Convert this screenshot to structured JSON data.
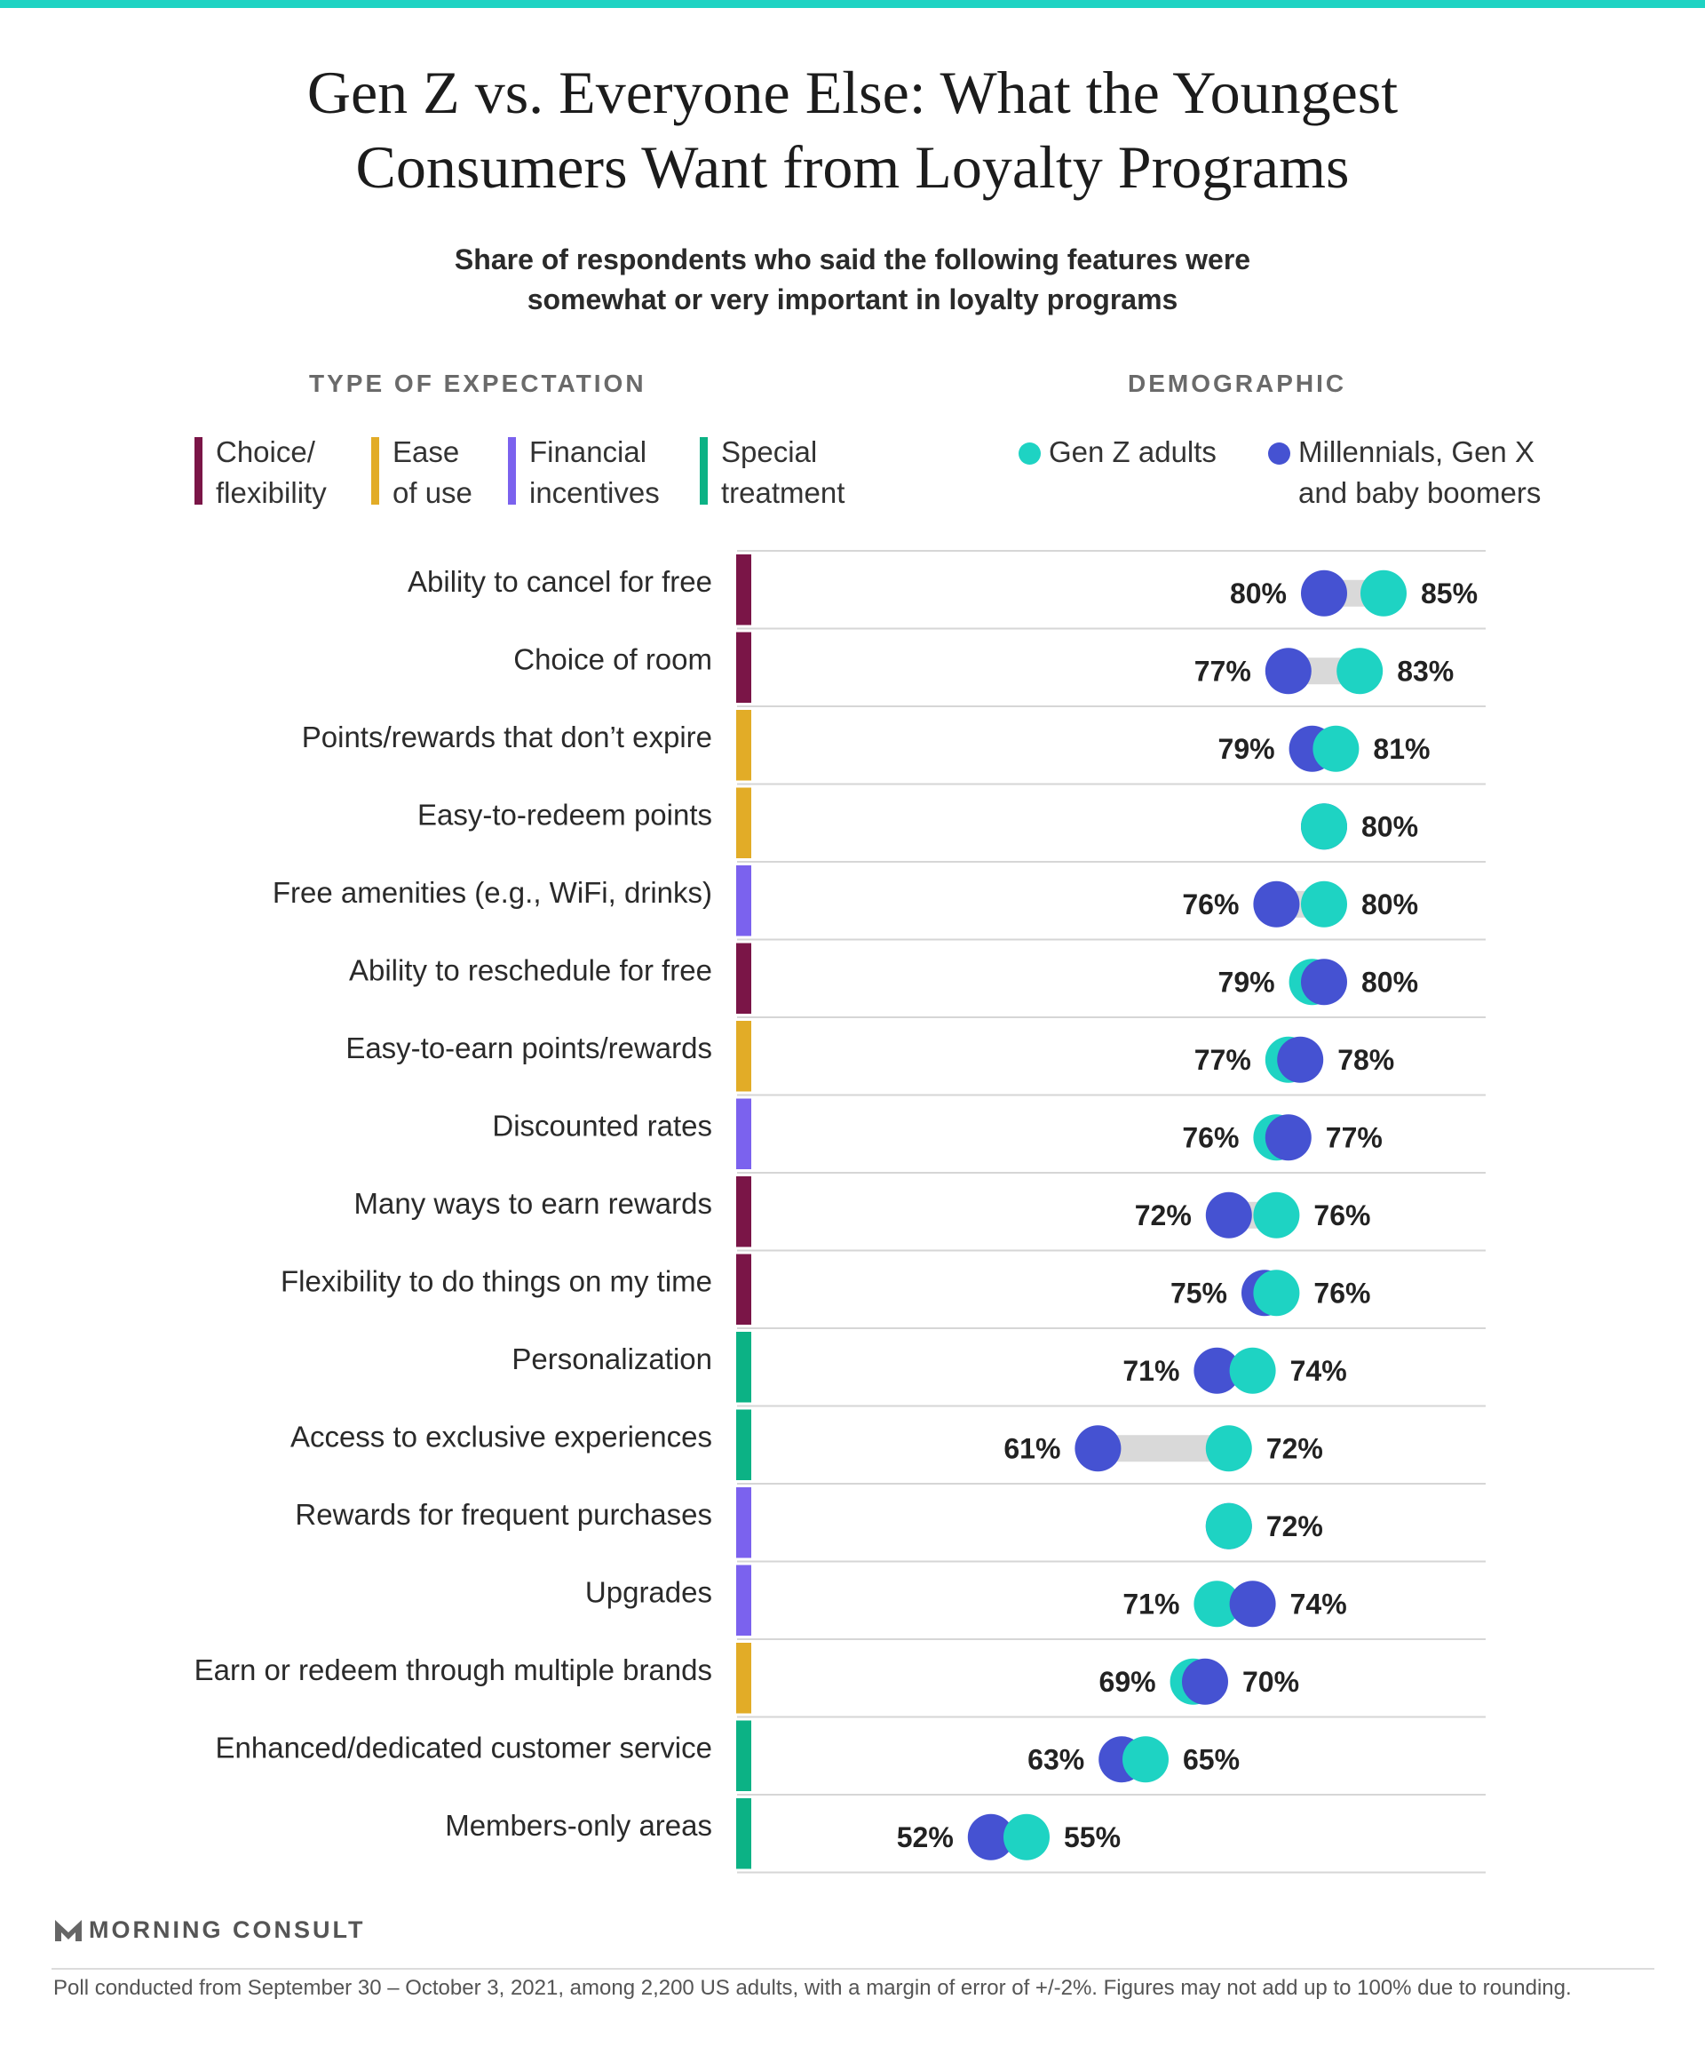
{
  "header": {
    "title_lines": [
      "Gen Z vs. Everyone Else: What the Youngest",
      "Consumers Want from Loyalty Programs"
    ],
    "subtitle_lines": [
      "Share of respondents who said the following features were",
      "somewhat or very important in loyalty programs"
    ]
  },
  "legend": {
    "type_heading": "TYPE OF EXPECTATION",
    "demographic_heading": "DEMOGRAPHIC",
    "types": [
      {
        "key": "choice",
        "lines": [
          "Choice/",
          "flexibility"
        ],
        "color": "#7a1547"
      },
      {
        "key": "ease",
        "lines": [
          "Ease",
          "of use"
        ],
        "color": "#e2ac27"
      },
      {
        "key": "financial",
        "lines": [
          "Financial",
          "incentives"
        ],
        "color": "#7b62ee"
      },
      {
        "key": "special",
        "lines": [
          "Special",
          "treatment"
        ],
        "color": "#0cb285"
      }
    ],
    "demographics": [
      {
        "key": "genz",
        "lines": [
          "Gen Z adults"
        ],
        "color": "#1ed3c3"
      },
      {
        "key": "others",
        "lines": [
          "Millennials, Gen X",
          "and baby boomers"
        ],
        "color": "#4552d2"
      }
    ]
  },
  "chart_data": {
    "type": "dot",
    "unit": "%",
    "series": [
      {
        "name": "Gen Z adults",
        "key": "genz",
        "color": "#1ed3c3"
      },
      {
        "name": "Millennials, Gen X and baby boomers",
        "key": "others",
        "color": "#4552d2"
      }
    ],
    "connector_color": "#d9d9d9",
    "rows": [
      {
        "label": "Ability to cancel for free",
        "type": "choice",
        "genz": 85,
        "others": 80
      },
      {
        "label": "Choice of room",
        "type": "choice",
        "genz": 83,
        "others": 77
      },
      {
        "label": "Points/rewards that don’t expire",
        "type": "ease",
        "genz": 81,
        "others": 79
      },
      {
        "label": "Easy-to-redeem points",
        "type": "ease",
        "genz": 80,
        "others": 80
      },
      {
        "label": "Free amenities (e.g., WiFi, drinks)",
        "type": "financial",
        "genz": 80,
        "others": 76
      },
      {
        "label": "Ability to reschedule for free",
        "type": "choice",
        "genz": 79,
        "others": 80
      },
      {
        "label": "Easy-to-earn points/rewards",
        "type": "ease",
        "genz": 77,
        "others": 78
      },
      {
        "label": "Discounted rates",
        "type": "financial",
        "genz": 76,
        "others": 77
      },
      {
        "label": "Many ways to earn rewards",
        "type": "choice",
        "genz": 76,
        "others": 72
      },
      {
        "label": "Flexibility to do things on my time",
        "type": "choice",
        "genz": 76,
        "others": 75
      },
      {
        "label": "Personalization",
        "type": "special",
        "genz": 74,
        "others": 71
      },
      {
        "label": "Access to exclusive experiences",
        "type": "special",
        "genz": 72,
        "others": 61
      },
      {
        "label": "Rewards for frequent purchases",
        "type": "financial",
        "genz": 72,
        "others": 72
      },
      {
        "label": "Upgrades",
        "type": "financial",
        "genz": 71,
        "others": 74
      },
      {
        "label": "Earn or redeem through multiple brands",
        "type": "ease",
        "genz": 69,
        "others": 70
      },
      {
        "label": "Enhanced/dedicated customer service",
        "type": "special",
        "genz": 65,
        "others": 63
      },
      {
        "label": "Members-only areas",
        "type": "special",
        "genz": 55,
        "others": 52
      }
    ]
  },
  "footer": {
    "brand": "MORNING CONSULT",
    "note": "Poll conducted from September 30 – October 3, 2021, among 2,200 US adults, with a margin of error of +/-2%. Figures may not add up to 100% due to rounding."
  }
}
